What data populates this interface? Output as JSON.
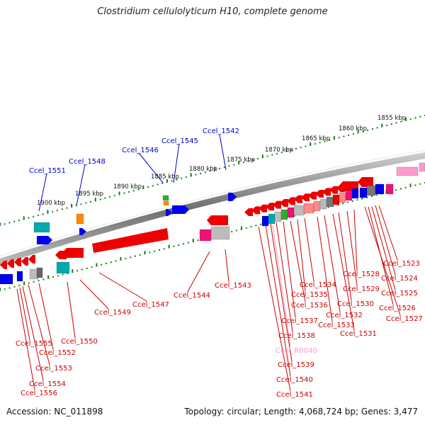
{
  "title": "Clostridium cellulolyticum H10, complete genome",
  "footer": {
    "accession": "Accession: NC_011898",
    "topology": "Topology: circular; Length: 4,068,724 bp; Genes: 3,477"
  },
  "colors": {
    "backbone": "#8a8a8a",
    "ticks": "#1e7a1e",
    "forward_label": "#0000cc",
    "reverse_label": "#cc0000",
    "rna_label": "#ff99cc"
  },
  "kbp_ticks": [
    "1855 kbp",
    "1860 kbp",
    "1865 kbp",
    "1870 kbp",
    "1875 kbp",
    "1880 kbp",
    "1885 kbp",
    "1890 kbp",
    "1895 kbp",
    "1900 kbp"
  ],
  "forward_labels": [
    "Ccel_1542",
    "Ccel_1545",
    "Ccel_1546",
    "Ccel_1548",
    "Ccel_1551"
  ],
  "reverse_labels": [
    "Ccel_1523",
    "Ccel_1524",
    "Ccel_1525",
    "Ccel_1526",
    "Ccel_1527",
    "Ccel_1528",
    "Ccel_1529",
    "Ccel_1530",
    "Ccel_1531",
    "Ccel_1532",
    "Ccel_1533",
    "Ccel_1534",
    "Ccel_1535",
    "Ccel_1536",
    "Ccel_1537",
    "Ccel_1538",
    "Ccel_1539",
    "Ccel_1540",
    "Ccel_1541",
    "Ccel_1543",
    "Ccel_1544",
    "Ccel_1547",
    "Ccel_1549",
    "Ccel_1550",
    "Ccel_1552",
    "Ccel_1553",
    "Ccel_1554",
    "Ccel_1555",
    "Ccel_1556"
  ],
  "rna_labels": [
    "Ccel_R0040"
  ]
}
